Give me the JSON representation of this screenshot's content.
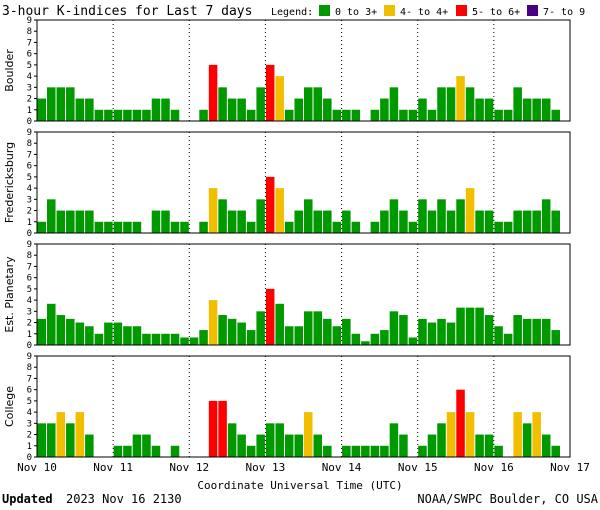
{
  "header": {
    "title": "3-hour K-indices for Last 7 days",
    "legend_label": "Legend:",
    "legend": [
      {
        "label": "0 to 3+",
        "color": "#009900"
      },
      {
        "label": "4- to 4+",
        "color": "#f2be00"
      },
      {
        "label": "5- to 6+",
        "color": "#ff0000"
      },
      {
        "label": "7- to 9",
        "color": "#4b0082"
      }
    ]
  },
  "footer": {
    "updated_label": "Updated",
    "updated_value": "2023 Nov 16 2130",
    "source": "NOAA/SWPC Boulder, CO USA"
  },
  "chart_data": {
    "type": "bar",
    "title": "3-hour K-indices for Last 7 days",
    "xlabel": "Coordinate Universal Time (UTC)",
    "ylabel": "",
    "ylim": [
      0,
      9
    ],
    "y_ticks": [
      0,
      1,
      2,
      3,
      4,
      5,
      6,
      7,
      8,
      9
    ],
    "x_date_labels": [
      "Nov 10",
      "Nov 11",
      "Nov 12",
      "Nov 13",
      "Nov 14",
      "Nov 15",
      "Nov 16",
      "Nov 17"
    ],
    "bins_per_day": 8,
    "color_thresholds": {
      "green_max": 3.67,
      "yellow_max": 4.67,
      "red_max": 6.67
    },
    "colors": {
      "green": "#009900",
      "yellow": "#f2be00",
      "red": "#ff0000",
      "purple": "#4b0082"
    },
    "series": [
      {
        "name": "Boulder",
        "values": [
          2,
          3,
          3,
          3,
          2,
          2,
          1,
          1,
          1,
          1,
          1,
          1,
          2,
          2,
          1,
          0,
          0,
          1,
          5,
          3,
          2,
          2,
          1,
          3,
          5,
          4,
          1,
          2,
          3,
          3,
          2,
          1,
          1,
          1,
          0,
          1,
          2,
          3,
          1,
          1,
          2,
          1,
          3,
          3,
          4,
          3,
          2,
          2,
          1,
          1,
          3,
          2,
          2,
          2,
          1,
          0
        ]
      },
      {
        "name": "Fredericksburg",
        "values": [
          1,
          3,
          2,
          2,
          2,
          2,
          1,
          1,
          1,
          1,
          1,
          0,
          2,
          2,
          1,
          1,
          0,
          1,
          4,
          3,
          2,
          2,
          1,
          3,
          5,
          4,
          1,
          2,
          3,
          2,
          2,
          1,
          2,
          1,
          0,
          1,
          2,
          3,
          2,
          1,
          3,
          2,
          3,
          2,
          3,
          4,
          2,
          2,
          1,
          1,
          2,
          2,
          2,
          3,
          2,
          0
        ]
      },
      {
        "name": "Est. Planetary",
        "values": [
          2.33,
          3.67,
          2.67,
          2.33,
          2,
          1.67,
          1,
          2,
          2,
          1.67,
          1.67,
          1,
          1,
          1,
          1,
          0.67,
          0.67,
          1.33,
          4,
          2.67,
          2.33,
          2,
          1.33,
          3,
          5,
          3.67,
          1.67,
          1.67,
          3,
          3,
          2.33,
          1.67,
          2.33,
          1,
          0.33,
          1,
          1.33,
          3,
          2.67,
          0.67,
          2.33,
          2,
          2.33,
          2,
          3.33,
          3.33,
          3.33,
          2.67,
          1.67,
          1,
          2.67,
          2.33,
          2.33,
          2.33,
          1.33,
          0
        ]
      },
      {
        "name": "College",
        "values": [
          3,
          3,
          4,
          3,
          4,
          2,
          0,
          0,
          1,
          1,
          2,
          2,
          1,
          0,
          1,
          0,
          0,
          0,
          5,
          5,
          3,
          2,
          1,
          2,
          3,
          3,
          2,
          2,
          4,
          2,
          1,
          0,
          1,
          1,
          1,
          1,
          1,
          3,
          2,
          0,
          1,
          2,
          3,
          4,
          6,
          4,
          2,
          2,
          1,
          0,
          4,
          3,
          4,
          2,
          1,
          0
        ]
      }
    ]
  }
}
